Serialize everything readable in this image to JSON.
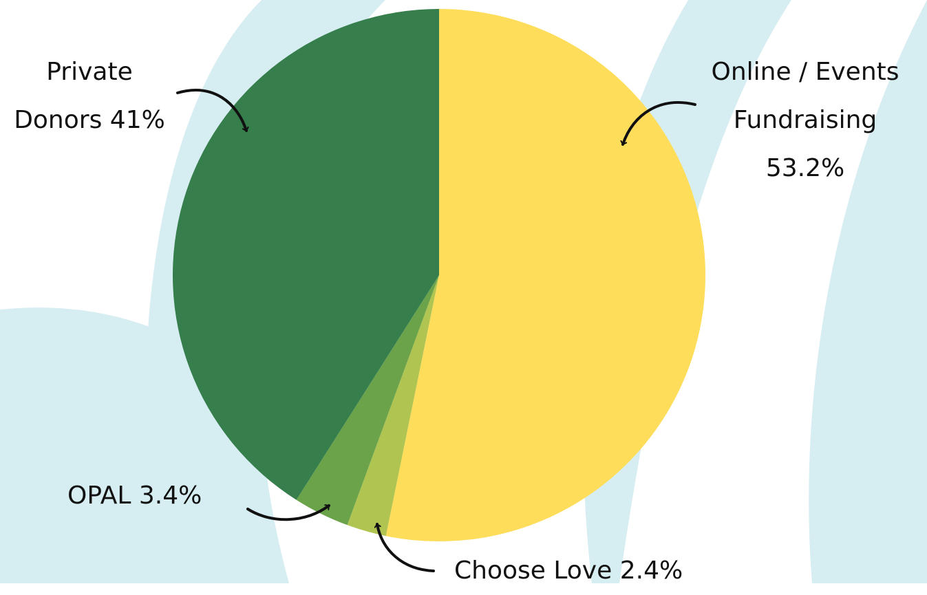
{
  "chart_data": {
    "type": "pie",
    "categories": [
      "Online / Events Fundraising",
      "Choose Love",
      "OPAL",
      "Private Donors"
    ],
    "values": [
      53.2,
      2.4,
      3.4,
      41
    ],
    "value_labels": [
      "53.2%",
      "2.4%",
      "3.4%",
      "41%"
    ],
    "colors": [
      "#fddd5a",
      "#b0c452",
      "#6ba34b",
      "#367f4c"
    ]
  }
}
